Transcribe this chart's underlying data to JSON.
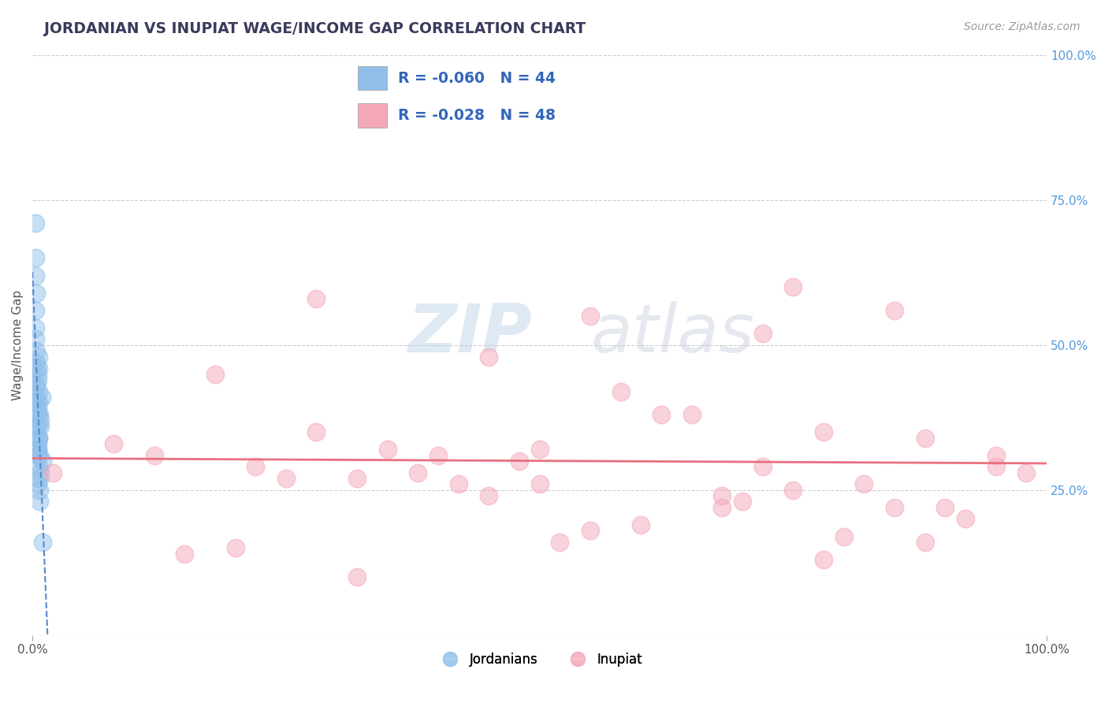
{
  "title": "JORDANIAN VS INUPIAT WAGE/INCOME GAP CORRELATION CHART",
  "source_text": "Source: ZipAtlas.com",
  "ylabel": "Wage/Income Gap",
  "legend_labels": [
    "Jordanians",
    "Inupiat"
  ],
  "legend_r_n": [
    {
      "R": "-0.060",
      "N": "44"
    },
    {
      "R": "-0.028",
      "N": "48"
    }
  ],
  "background_color": "#ffffff",
  "plot_bg_color": "#ffffff",
  "grid_color": "#cccccc",
  "title_color": "#3a3a5c",
  "source_color": "#999999",
  "jordanian_color": "#90c0ea",
  "inupiat_color": "#f4a8b8",
  "jordanian_line_color": "#5588cc",
  "inupiat_line_color": "#e87080",
  "right_tick_color": "#5599dd",
  "watermark_zip_color": "#c5d8ed",
  "watermark_atlas_color": "#c8cce0",
  "xlim": [
    0,
    1
  ],
  "ylim": [
    0,
    1
  ],
  "jordanians_x": [
    0.005,
    0.008,
    0.004,
    0.007,
    0.003,
    0.006,
    0.009,
    0.01,
    0.003,
    0.005,
    0.004,
    0.006,
    0.005,
    0.007,
    0.004,
    0.003,
    0.005,
    0.006,
    0.008,
    0.005,
    0.003,
    0.004,
    0.005,
    0.006,
    0.007,
    0.004,
    0.005,
    0.003,
    0.006,
    0.008,
    0.005,
    0.004,
    0.003,
    0.006,
    0.005,
    0.007,
    0.01,
    0.005,
    0.004,
    0.003,
    0.006,
    0.005,
    0.007,
    0.004
  ],
  "jordanians_y": [
    0.34,
    0.36,
    0.4,
    0.38,
    0.43,
    0.46,
    0.41,
    0.3,
    0.51,
    0.32,
    0.36,
    0.34,
    0.32,
    0.31,
    0.49,
    0.56,
    0.38,
    0.4,
    0.28,
    0.45,
    0.53,
    0.47,
    0.44,
    0.42,
    0.27,
    0.59,
    0.26,
    0.62,
    0.48,
    0.37,
    0.39,
    0.43,
    0.65,
    0.34,
    0.31,
    0.23,
    0.16,
    0.36,
    0.41,
    0.71,
    0.29,
    0.33,
    0.25,
    0.46
  ],
  "inupiat_x": [
    0.02,
    0.08,
    0.12,
    0.18,
    0.22,
    0.28,
    0.32,
    0.38,
    0.42,
    0.28,
    0.45,
    0.5,
    0.55,
    0.58,
    0.62,
    0.68,
    0.72,
    0.75,
    0.78,
    0.82,
    0.85,
    0.88,
    0.92,
    0.95,
    0.98,
    0.35,
    0.48,
    0.6,
    0.7,
    0.8,
    0.9,
    0.15,
    0.25,
    0.4,
    0.52,
    0.65,
    0.75,
    0.85,
    0.95,
    0.2,
    0.32,
    0.45,
    0.55,
    0.68,
    0.78,
    0.88,
    0.5,
    0.72
  ],
  "inupiat_y": [
    0.28,
    0.33,
    0.31,
    0.45,
    0.29,
    0.35,
    0.27,
    0.28,
    0.26,
    0.58,
    0.48,
    0.32,
    0.55,
    0.42,
    0.38,
    0.24,
    0.52,
    0.6,
    0.35,
    0.26,
    0.56,
    0.34,
    0.2,
    0.31,
    0.28,
    0.32,
    0.3,
    0.19,
    0.23,
    0.17,
    0.22,
    0.14,
    0.27,
    0.31,
    0.16,
    0.38,
    0.25,
    0.22,
    0.29,
    0.15,
    0.1,
    0.24,
    0.18,
    0.22,
    0.13,
    0.16,
    0.26,
    0.29
  ]
}
